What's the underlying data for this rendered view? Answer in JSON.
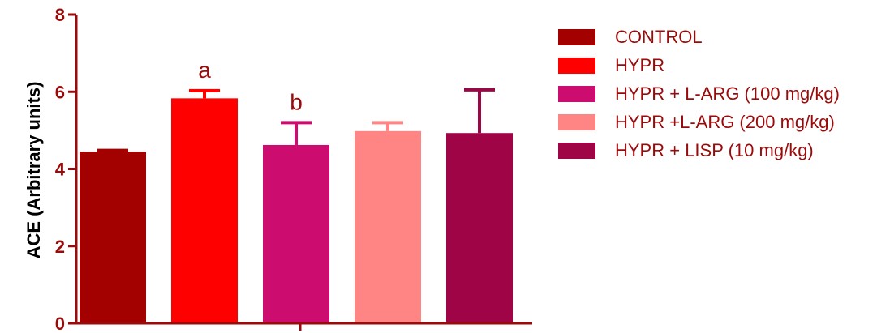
{
  "chart_data": {
    "type": "bar",
    "title": "",
    "xlabel": "",
    "ylabel": "ACE (Arbitrary units)",
    "ylim": [
      0,
      8
    ],
    "yticks": [
      0,
      2,
      4,
      6,
      8
    ],
    "grid": false,
    "legend_position": "right",
    "categories": [
      "CONTROL",
      "HYPR",
      "HYPR + L-ARG (100 mg/kg)",
      "HYPR +L-ARG (200 mg/kg)",
      "HYPR + LISP (10 mg/kg)"
    ],
    "values": [
      4.45,
      5.83,
      4.62,
      4.98,
      4.93
    ],
    "error": [
      0.03,
      0.2,
      0.58,
      0.22,
      1.12
    ],
    "annotations": [
      "",
      "a",
      "b",
      "",
      ""
    ],
    "colors": [
      "#a30000",
      "#ff0000",
      "#cc0c6e",
      "#ff8484",
      "#9e0446"
    ],
    "axis_color": "#9b0a0a"
  }
}
